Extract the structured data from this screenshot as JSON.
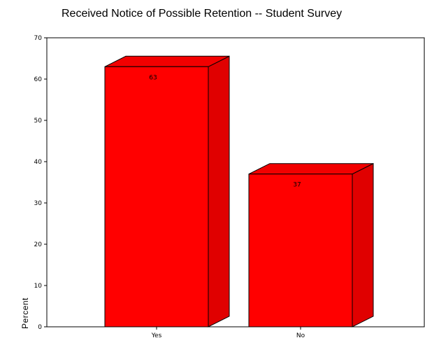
{
  "chart_data": {
    "type": "bar",
    "title": "Received Notice of Possible Retention -- Student Survey",
    "xlabel": "",
    "ylabel": "Percent",
    "categories": [
      "Yes",
      "No"
    ],
    "values": [
      63,
      37
    ],
    "data_labels": [
      "63",
      "37"
    ],
    "ylim": [
      0,
      70
    ],
    "yticks": [
      0,
      10,
      20,
      30,
      40,
      50,
      60,
      70
    ],
    "grid": false,
    "legend": "none",
    "style": "3d-bar",
    "bar_color": "#ff0000",
    "bar_top_color": "#f20000",
    "bar_side_color": "#e00000",
    "outline_color": "#000000"
  }
}
